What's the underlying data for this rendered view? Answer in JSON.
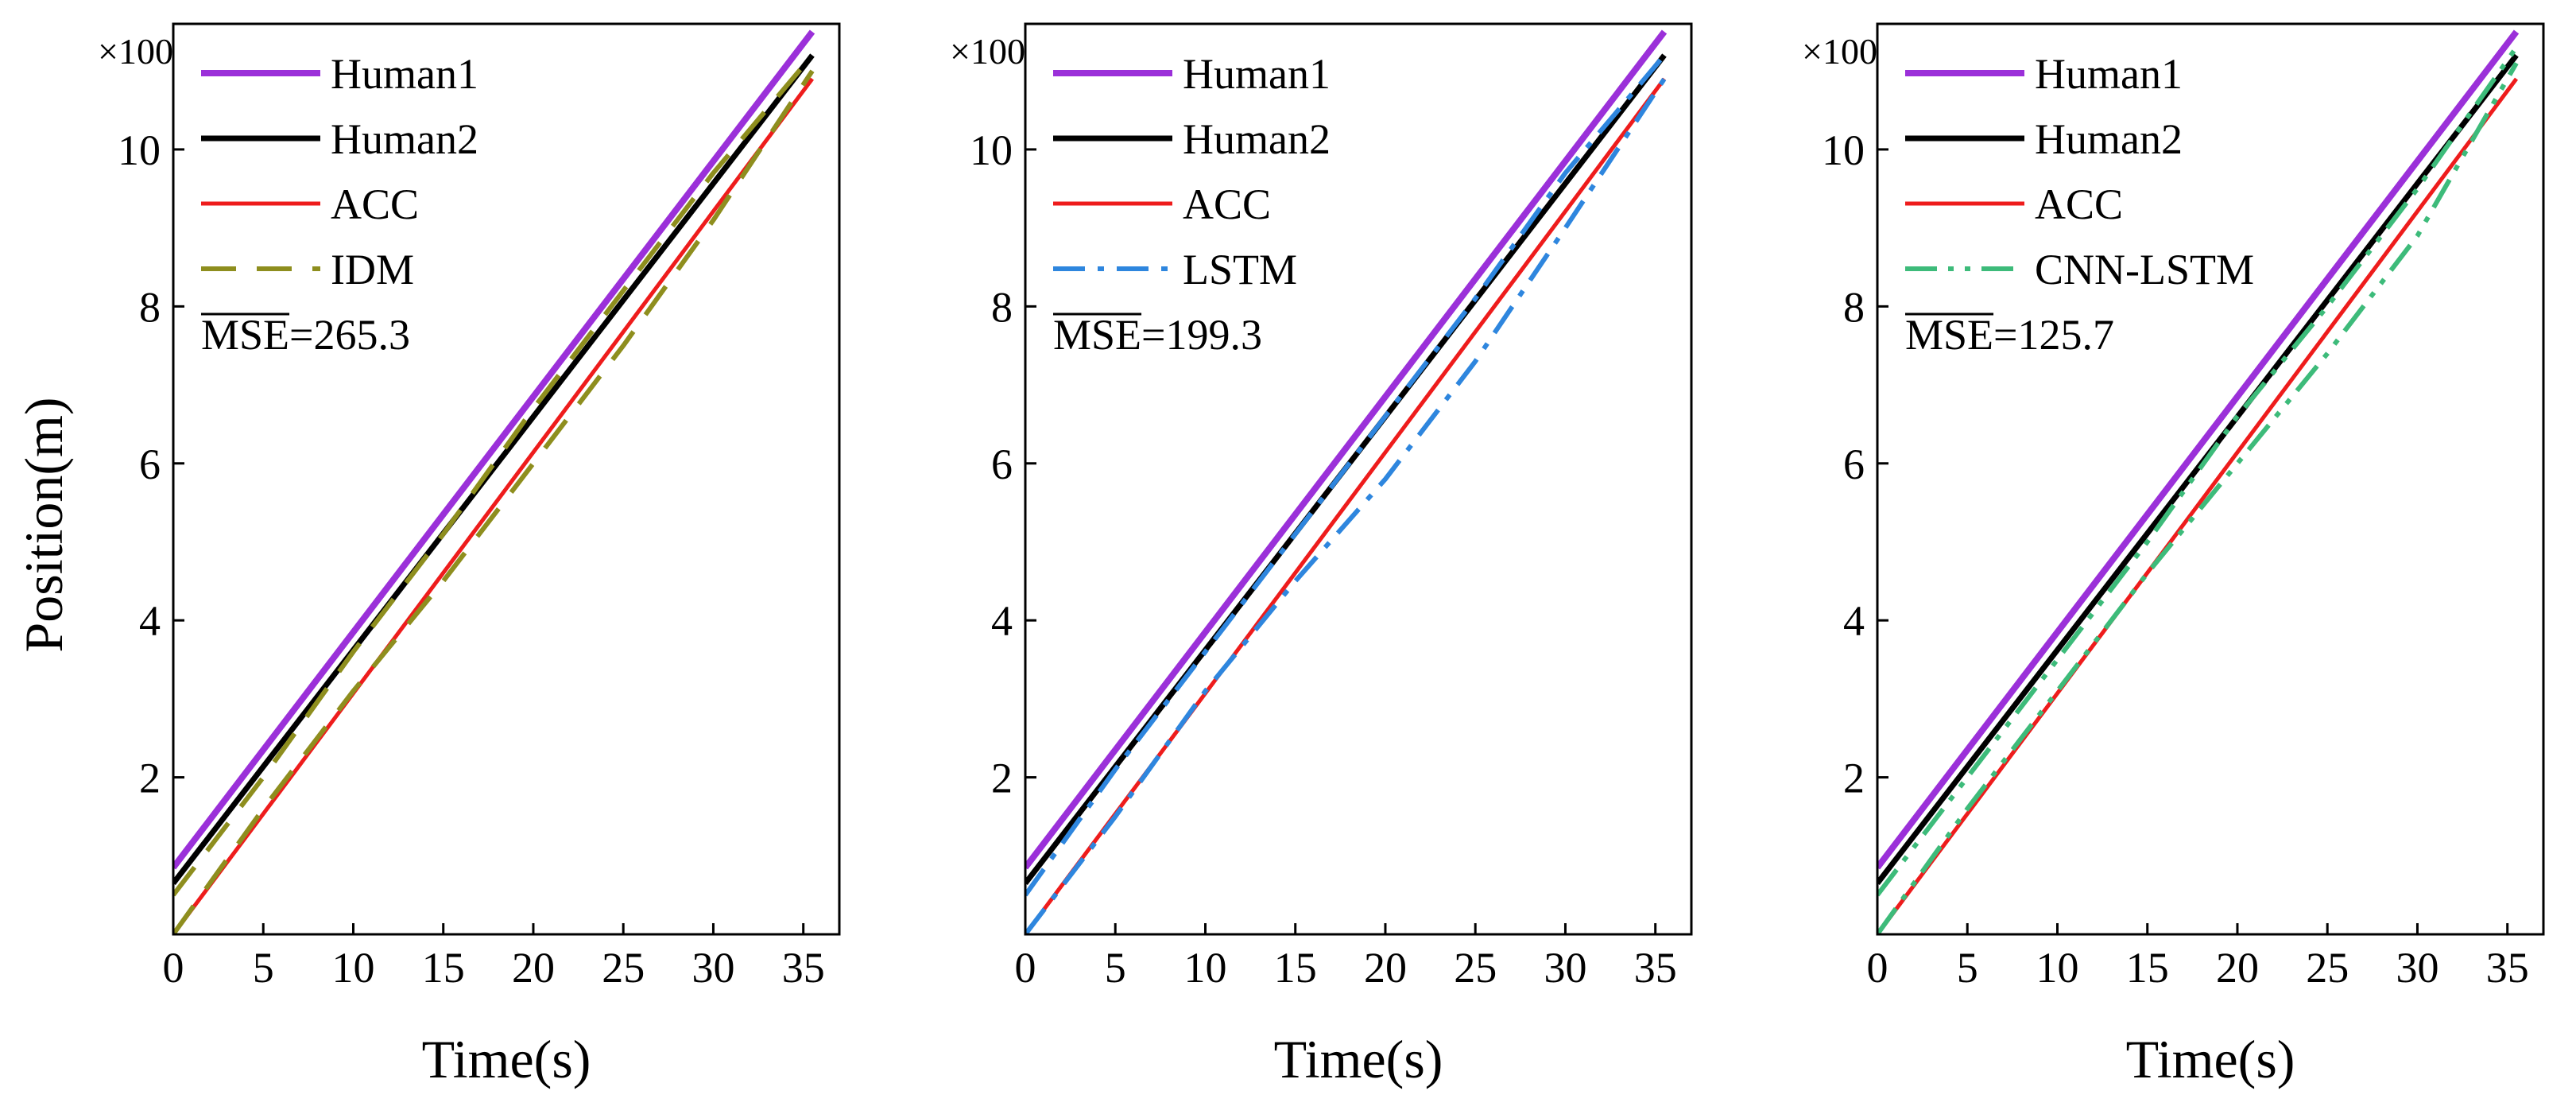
{
  "figure": {
    "shared_ylabel": "Position(m)",
    "colors": {
      "Human1": "#9B30D9",
      "Human2": "#000000",
      "ACC": "#EE1C1C",
      "IDM": "#8E8E1E",
      "LSTM": "#2E86DE",
      "CNN-LSTM": "#3DBB7A"
    }
  },
  "chart_data": [
    {
      "type": "line",
      "title": "",
      "xlabel": "Time(s)",
      "ylabel": "Position(m)",
      "y_multiplier": "×100",
      "xlim": [
        0,
        37
      ],
      "ylim": [
        0,
        11.6
      ],
      "xticks": [
        0,
        5,
        10,
        15,
        20,
        25,
        30,
        35
      ],
      "yticks": [
        2,
        4,
        6,
        8,
        10
      ],
      "mse_label": "MSE",
      "mse_value": "=265.3",
      "series": [
        {
          "name": "Human1",
          "x": [
            0,
            35.5
          ],
          "y": [
            0.85,
            11.5
          ],
          "style": "solid"
        },
        {
          "name": "Human2",
          "x": [
            0,
            35.5
          ],
          "y": [
            0.65,
            11.2
          ],
          "style": "solid"
        },
        {
          "name": "ACC",
          "x": [
            0,
            35.5
          ],
          "y": [
            0.0,
            10.9
          ],
          "style": "solid"
        },
        {
          "name": "IDM",
          "x": [
            0,
            5,
            10,
            15,
            20,
            25,
            30,
            35.5
          ],
          "y": [
            0.5,
            2.0,
            3.6,
            5.1,
            6.7,
            8.2,
            9.7,
            11.2
          ],
          "style": "dashed"
        },
        {
          "name": "IDM",
          "x": [
            0,
            5,
            10,
            15,
            20,
            25,
            30,
            35.5
          ],
          "y": [
            0.0,
            1.6,
            3.1,
            4.5,
            6.0,
            7.5,
            9.1,
            11.0
          ],
          "style": "dashed",
          "legend": false
        }
      ]
    },
    {
      "type": "line",
      "title": "",
      "xlabel": "Time(s)",
      "ylabel": "",
      "y_multiplier": "×100",
      "xlim": [
        0,
        37
      ],
      "ylim": [
        0,
        11.6
      ],
      "xticks": [
        0,
        5,
        10,
        15,
        20,
        25,
        30,
        35
      ],
      "yticks": [
        2,
        4,
        6,
        8,
        10
      ],
      "mse_label": "MSE",
      "mse_value": "=199.3",
      "series": [
        {
          "name": "Human1",
          "x": [
            0,
            35.5
          ],
          "y": [
            0.85,
            11.5
          ],
          "style": "solid"
        },
        {
          "name": "Human2",
          "x": [
            0,
            35.5
          ],
          "y": [
            0.65,
            11.2
          ],
          "style": "solid"
        },
        {
          "name": "ACC",
          "x": [
            0,
            35.5
          ],
          "y": [
            0.0,
            10.9
          ],
          "style": "solid"
        },
        {
          "name": "LSTM",
          "x": [
            0,
            5,
            10,
            15,
            20,
            25,
            30,
            35.5
          ],
          "y": [
            0.5,
            2.1,
            3.6,
            5.1,
            6.6,
            8.1,
            9.7,
            11.2
          ],
          "style": "dashdot"
        },
        {
          "name": "LSTM",
          "x": [
            0,
            5,
            10,
            15,
            20,
            25,
            30,
            35.5
          ],
          "y": [
            0.0,
            1.5,
            3.1,
            4.5,
            5.8,
            7.3,
            9.0,
            10.9
          ],
          "style": "dashdot",
          "legend": false
        }
      ]
    },
    {
      "type": "line",
      "title": "",
      "xlabel": "Time(s)",
      "ylabel": "",
      "y_multiplier": "×100",
      "xlim": [
        0,
        37
      ],
      "ylim": [
        0,
        11.6
      ],
      "xticks": [
        0,
        5,
        10,
        15,
        20,
        25,
        30,
        35
      ],
      "yticks": [
        2,
        4,
        6,
        8,
        10
      ],
      "mse_label": "MSE",
      "mse_value": "=125.7",
      "series": [
        {
          "name": "Human1",
          "x": [
            0,
            35.5
          ],
          "y": [
            0.85,
            11.5
          ],
          "style": "solid"
        },
        {
          "name": "Human2",
          "x": [
            0,
            35.5
          ],
          "y": [
            0.65,
            11.2
          ],
          "style": "solid"
        },
        {
          "name": "ACC",
          "x": [
            0,
            35.5
          ],
          "y": [
            0.0,
            10.9
          ],
          "style": "solid"
        },
        {
          "name": "CNN-LSTM",
          "x": [
            0,
            5,
            10,
            15,
            20,
            25,
            30,
            35.5
          ],
          "y": [
            0.5,
            2.0,
            3.5,
            5.0,
            6.6,
            8.0,
            9.5,
            11.3
          ],
          "style": "dashdotdot"
        },
        {
          "name": "CNN-LSTM",
          "x": [
            0,
            5,
            10,
            15,
            20,
            25,
            30,
            35.5
          ],
          "y": [
            0.0,
            1.6,
            3.1,
            4.6,
            6.0,
            7.4,
            8.9,
            11.1
          ],
          "style": "dashdotdot",
          "legend": false
        }
      ]
    }
  ]
}
